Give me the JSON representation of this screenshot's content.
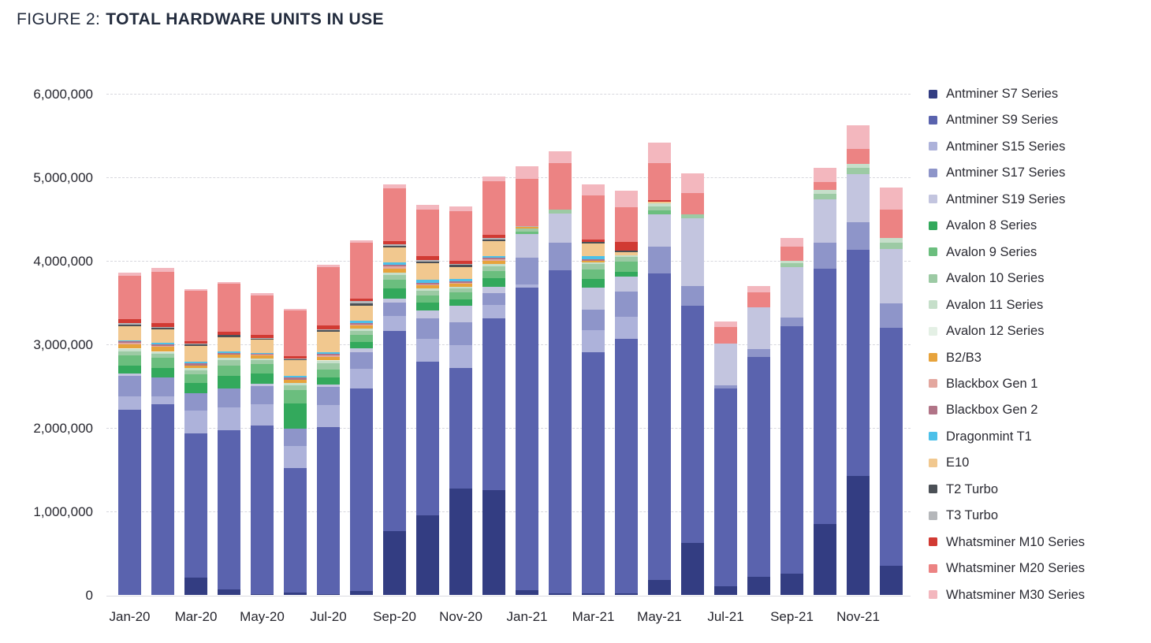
{
  "figure": {
    "label": "FIGURE 2:",
    "title": "TOTAL HARDWARE UNITS IN USE"
  },
  "chart_data": {
    "type": "bar",
    "stacked": true,
    "title": "Total Hardware Units in Use",
    "xlabel": "",
    "ylabel": "",
    "ylim": [
      0,
      6000000
    ],
    "grid": "horizontal-dashed",
    "legend_position": "right",
    "y_ticks": [
      "0",
      "1,000,000",
      "2,000,000",
      "3,000,000",
      "4,000,000",
      "5,000,000",
      "6,000,000"
    ],
    "x": [
      "Jan-20",
      "Feb-20",
      "Mar-20",
      "Apr-20",
      "May-20",
      "Jun-20",
      "Jul-20",
      "Aug-20",
      "Sep-20",
      "Oct-20",
      "Nov-20",
      "Dec-20",
      "Jan-21",
      "Feb-21",
      "Mar-21",
      "Apr-21",
      "May-21",
      "Jun-21",
      "Jul-21",
      "Aug-21",
      "Sep-21",
      "Oct-21",
      "Nov-21",
      "Dec-21"
    ],
    "x_tick_labels": [
      "Jan-20",
      "Mar-20",
      "May-20",
      "Jul-20",
      "Sep-20",
      "Nov-20",
      "Jan-21",
      "Mar-21",
      "May-21",
      "Jul-21",
      "Sep-21",
      "Nov-21"
    ],
    "series": [
      {
        "name": "Antminer S7 Series",
        "color": "#333d82",
        "values": [
          0,
          0,
          210000,
          70000,
          10000,
          30000,
          10000,
          50000,
          760000,
          950000,
          1270000,
          1250000,
          60000,
          20000,
          20000,
          20000,
          180000,
          620000,
          100000,
          220000,
          250000,
          850000,
          1420000,
          350000
        ]
      },
      {
        "name": "Antminer S9 Series",
        "color": "#5a63ae",
        "values": [
          2220000,
          2280000,
          1720000,
          1900000,
          2020000,
          1490000,
          2000000,
          2420000,
          2400000,
          1840000,
          1450000,
          2060000,
          3620000,
          3870000,
          2890000,
          3050000,
          3670000,
          2840000,
          2370000,
          2630000,
          2970000,
          3060000,
          2710000,
          2850000
        ]
      },
      {
        "name": "Antminer S15 Series",
        "color": "#adb2da",
        "values": [
          160000,
          100000,
          280000,
          280000,
          250000,
          260000,
          260000,
          240000,
          180000,
          280000,
          270000,
          160000,
          40000,
          0,
          260000,
          260000,
          0,
          0,
          0,
          0,
          0,
          0,
          0,
          0
        ]
      },
      {
        "name": "Antminer S17 Series",
        "color": "#8e95c9",
        "values": [
          240000,
          220000,
          210000,
          220000,
          220000,
          210000,
          220000,
          200000,
          160000,
          240000,
          270000,
          140000,
          320000,
          330000,
          250000,
          300000,
          320000,
          240000,
          40000,
          90000,
          100000,
          310000,
          330000,
          290000
        ]
      },
      {
        "name": "Antminer S19 Series",
        "color": "#c3c5df",
        "values": [
          30000,
          0,
          0,
          0,
          30000,
          0,
          30000,
          40000,
          50000,
          100000,
          200000,
          80000,
          280000,
          350000,
          260000,
          180000,
          390000,
          810000,
          500000,
          500000,
          600000,
          520000,
          580000,
          650000
        ]
      },
      {
        "name": "Avalon 8 Series",
        "color": "#33a95c",
        "values": [
          100000,
          120000,
          120000,
          150000,
          120000,
          300000,
          80000,
          80000,
          120000,
          90000,
          80000,
          100000,
          0,
          0,
          100000,
          60000,
          0,
          0,
          0,
          0,
          0,
          0,
          0,
          0
        ]
      },
      {
        "name": "Avalon 9 Series",
        "color": "#6bbe7e",
        "values": [
          120000,
          120000,
          100000,
          130000,
          110000,
          160000,
          100000,
          80000,
          100000,
          90000,
          80000,
          90000,
          30000,
          0,
          120000,
          120000,
          40000,
          0,
          0,
          0,
          0,
          0,
          0,
          0
        ]
      },
      {
        "name": "Avalon 10 Series",
        "color": "#9ccaa4",
        "values": [
          50000,
          50000,
          50000,
          60000,
          50000,
          60000,
          70000,
          50000,
          60000,
          50000,
          50000,
          50000,
          40000,
          40000,
          60000,
          60000,
          50000,
          50000,
          0,
          0,
          50000,
          60000,
          70000,
          80000
        ]
      },
      {
        "name": "Avalon 11 Series",
        "color": "#c6dfca",
        "values": [
          20000,
          20000,
          30000,
          30000,
          20000,
          30000,
          30000,
          30000,
          30000,
          30000,
          20000,
          30000,
          0,
          0,
          20000,
          20000,
          40000,
          0,
          0,
          0,
          30000,
          50000,
          50000,
          50000
        ]
      },
      {
        "name": "Avalon 12 Series",
        "color": "#e4f0e5",
        "values": [
          10000,
          10000,
          0,
          0,
          0,
          0,
          10000,
          0,
          0,
          0,
          0,
          0,
          0,
          0,
          0,
          0,
          0,
          0,
          0,
          0,
          0,
          0,
          0,
          0
        ]
      },
      {
        "name": "B2/B3",
        "color": "#e7a33c",
        "values": [
          50000,
          50000,
          30000,
          40000,
          40000,
          40000,
          40000,
          40000,
          50000,
          40000,
          40000,
          40000,
          20000,
          0,
          20000,
          0,
          0,
          0,
          0,
          0,
          0,
          0,
          0,
          0
        ]
      },
      {
        "name": "Blackbox Gen 1",
        "color": "#e3a79f",
        "values": [
          20000,
          10000,
          0,
          0,
          10000,
          0,
          20000,
          10000,
          20000,
          10000,
          10000,
          20000,
          0,
          0,
          0,
          0,
          0,
          0,
          0,
          0,
          0,
          0,
          0,
          0
        ]
      },
      {
        "name": "Blackbox Gen 2",
        "color": "#b17487",
        "values": [
          20000,
          20000,
          20000,
          20000,
          10000,
          20000,
          20000,
          20000,
          20000,
          20000,
          20000,
          20000,
          0,
          0,
          20000,
          0,
          0,
          0,
          0,
          0,
          0,
          0,
          0,
          0
        ]
      },
      {
        "name": "Dragonmint T1",
        "color": "#4cc0e9",
        "values": [
          10000,
          20000,
          20000,
          20000,
          10000,
          20000,
          20000,
          20000,
          30000,
          30000,
          20000,
          20000,
          0,
          0,
          40000,
          0,
          0,
          0,
          0,
          0,
          0,
          0,
          0,
          0
        ]
      },
      {
        "name": "E10",
        "color": "#f1c88f",
        "values": [
          170000,
          160000,
          190000,
          170000,
          160000,
          190000,
          240000,
          180000,
          180000,
          200000,
          150000,
          180000,
          0,
          0,
          150000,
          30000,
          20000,
          0,
          0,
          0,
          0,
          0,
          0,
          0
        ]
      },
      {
        "name": "T2 Turbo",
        "color": "#4b5056",
        "values": [
          20000,
          20000,
          20000,
          20000,
          10000,
          10000,
          20000,
          30000,
          20000,
          20000,
          20000,
          20000,
          0,
          0,
          20000,
          20000,
          0,
          0,
          0,
          0,
          0,
          0,
          0,
          0
        ]
      },
      {
        "name": "T3 Turbo",
        "color": "#b5b7ba",
        "values": [
          20000,
          10000,
          10000,
          0,
          10000,
          10000,
          10000,
          30000,
          20000,
          20000,
          10000,
          10000,
          10000,
          0,
          0,
          0,
          0,
          0,
          0,
          0,
          0,
          0,
          0,
          0
        ]
      },
      {
        "name": "Whatsminer M10 Series",
        "color": "#d13a33",
        "values": [
          40000,
          50000,
          30000,
          40000,
          30000,
          30000,
          50000,
          30000,
          40000,
          50000,
          40000,
          40000,
          0,
          0,
          30000,
          110000,
          20000,
          0,
          0,
          0,
          0,
          0,
          0,
          0
        ]
      },
      {
        "name": "Whatsminer M20 Series",
        "color": "#ec8383",
        "values": [
          520000,
          610000,
          600000,
          580000,
          480000,
          550000,
          700000,
          670000,
          630000,
          550000,
          600000,
          640000,
          560000,
          560000,
          520000,
          410000,
          440000,
          250000,
          200000,
          180000,
          170000,
          90000,
          180000,
          340000
        ]
      },
      {
        "name": "Whatsminer M30 Series",
        "color": "#f3b7be",
        "values": [
          40000,
          50000,
          20000,
          20000,
          20000,
          20000,
          20000,
          30000,
          50000,
          60000,
          50000,
          60000,
          150000,
          140000,
          140000,
          200000,
          250000,
          240000,
          60000,
          80000,
          100000,
          170000,
          280000,
          270000
        ]
      }
    ]
  }
}
